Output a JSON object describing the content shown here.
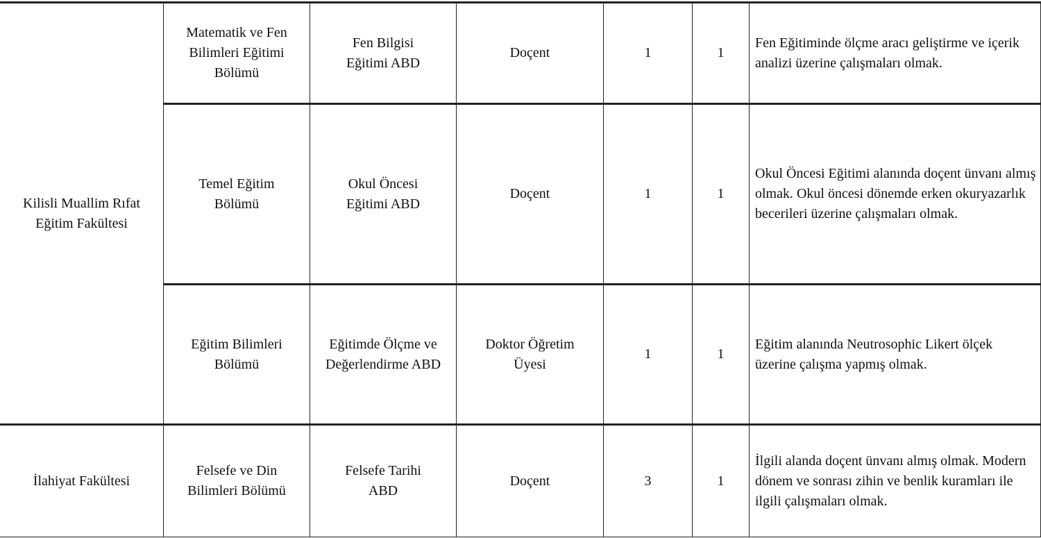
{
  "rows": [
    {
      "faculty": "Kilisli Muallim Rıfat Eğitim Fakültesi",
      "department": "Matematik ve Fen Bilimleri Eğitimi Bölümü",
      "division": "Fen Bilgisi Eğitimi ABD",
      "title": "Doçent",
      "count": "1",
      "degree": "1",
      "requirement": "Fen Eğitiminde ölçme aracı geliştirme ve içerik analizi üzerine çalışmaları olmak."
    },
    {
      "department": "Temel Eğitim Bölümü",
      "division": "Okul Öncesi Eğitimi ABD",
      "title": "Doçent",
      "count": "1",
      "degree": "1",
      "requirement": "Okul Öncesi Eğitimi alanında doçent ünvanı almış olmak. Okul öncesi dönemde erken okuryazarlık becerileri üzerine çalışmaları olmak."
    },
    {
      "department": "Eğitim Bilimleri Bölümü",
      "division": "Eğitimde Ölçme ve Değerlendirme ABD",
      "title": "Doktor Öğretim Üyesi",
      "count": "1",
      "degree": "1",
      "requirement": "Eğitim alanında Neutrosophic Likert ölçek üzerine çalışma yapmış olmak."
    },
    {
      "faculty": "İlahiyat Fakültesi",
      "department": "Felsefe ve Din Bilimleri Bölümü",
      "division": "Felsefe Tarihi ABD",
      "title": "Doçent",
      "count": "3",
      "degree": "1",
      "requirement": "İlgili alanda doçent ünvanı almış olmak. Modern dönem ve sonrası zihin ve benlik kuramları ile ilgili çalışmaları olmak."
    }
  ]
}
